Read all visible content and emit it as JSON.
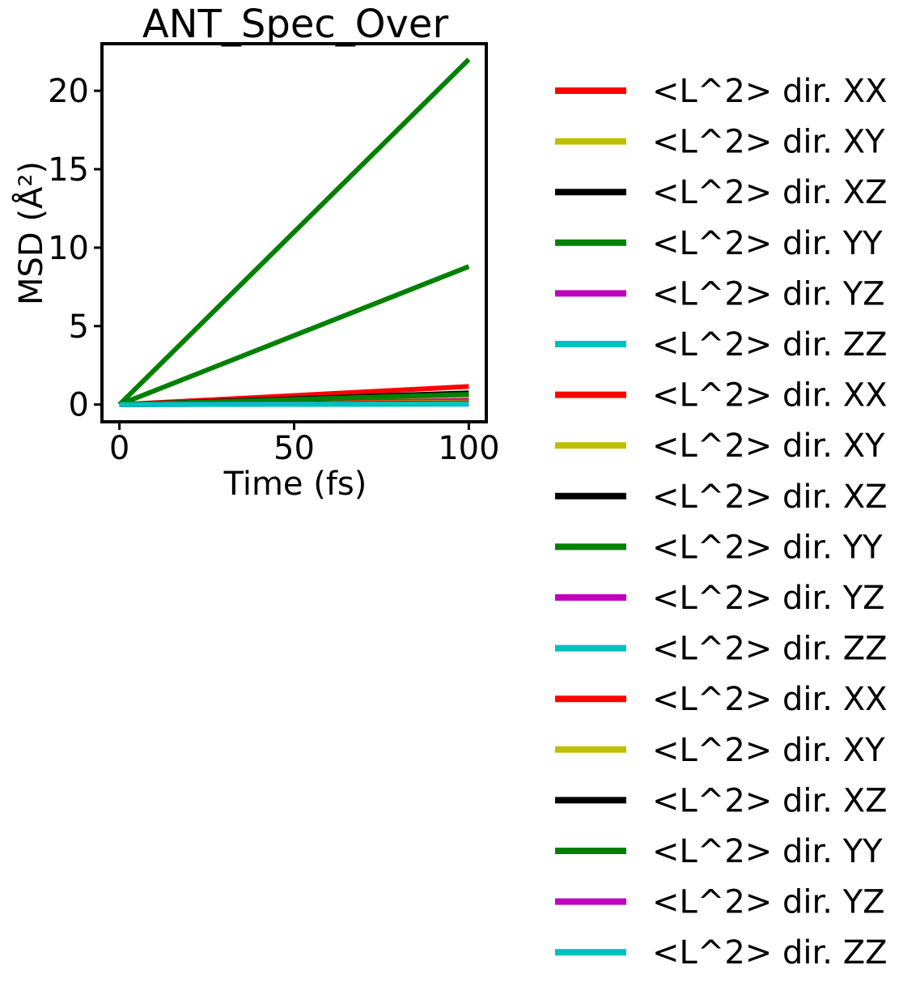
{
  "chart_data": {
    "type": "line",
    "title": "ANT_Spec_Over",
    "xlabel": "Time (fs)",
    "ylabel": "MSD (Å²)",
    "xlim": [
      -5,
      105
    ],
    "ylim": [
      -1.1,
      23
    ],
    "x_ticks": [
      0,
      50,
      100
    ],
    "y_ticks": [
      0,
      5,
      10,
      15,
      20
    ],
    "x_tick_labels": [
      "0",
      "50",
      "100"
    ],
    "y_tick_labels": [
      "0",
      "5",
      "10",
      "15",
      "20"
    ],
    "grid": false,
    "legend_position": "outside-right",
    "series": [
      {
        "name": "<L^2> dir. XX",
        "color": "#ff0000",
        "x": [
          0,
          100
        ],
        "y": [
          0,
          1.15
        ]
      },
      {
        "name": "<L^2> dir. XY",
        "color": "#bfbf00",
        "x": [
          0,
          100
        ],
        "y": [
          0,
          0.6
        ]
      },
      {
        "name": "<L^2> dir. XZ",
        "color": "#000000",
        "x": [
          0,
          100
        ],
        "y": [
          0,
          0.5
        ]
      },
      {
        "name": "<L^2> dir. YY",
        "color": "#008000",
        "x": [
          0,
          100
        ],
        "y": [
          0,
          22
        ]
      },
      {
        "name": "<L^2> dir. YZ",
        "color": "#bf00bf",
        "x": [
          0,
          100
        ],
        "y": [
          0,
          0.05
        ]
      },
      {
        "name": "<L^2> dir. ZZ",
        "color": "#00bfbf",
        "x": [
          0,
          100
        ],
        "y": [
          0,
          0.02
        ]
      },
      {
        "name": "<L^2> dir. XX",
        "color": "#ff0000",
        "x": [
          0,
          100
        ],
        "y": [
          0,
          0.45
        ]
      },
      {
        "name": "<L^2> dir. XY",
        "color": "#bfbf00",
        "x": [
          0,
          100
        ],
        "y": [
          0,
          0.35
        ]
      },
      {
        "name": "<L^2> dir. XZ",
        "color": "#000000",
        "x": [
          0,
          100
        ],
        "y": [
          0,
          0.75
        ]
      },
      {
        "name": "<L^2> dir. YY",
        "color": "#008000",
        "x": [
          0,
          100
        ],
        "y": [
          0,
          8.8
        ]
      },
      {
        "name": "<L^2> dir. YZ",
        "color": "#bf00bf",
        "x": [
          0,
          100
        ],
        "y": [
          0,
          0.25
        ]
      },
      {
        "name": "<L^2> dir. ZZ",
        "color": "#00bfbf",
        "x": [
          0,
          100
        ],
        "y": [
          0,
          0.03
        ]
      },
      {
        "name": "<L^2> dir. XX",
        "color": "#ff0000",
        "x": [
          0,
          100
        ],
        "y": [
          0,
          0.2
        ]
      },
      {
        "name": "<L^2> dir. XY",
        "color": "#bfbf00",
        "x": [
          0,
          100
        ],
        "y": [
          0,
          0.15
        ]
      },
      {
        "name": "<L^2> dir. XZ",
        "color": "#000000",
        "x": [
          0,
          100
        ],
        "y": [
          0,
          0.1
        ]
      },
      {
        "name": "<L^2> dir. YY",
        "color": "#008000",
        "x": [
          0,
          100
        ],
        "y": [
          0,
          0.65
        ]
      },
      {
        "name": "<L^2> dir. YZ",
        "color": "#bf00bf",
        "x": [
          0,
          100
        ],
        "y": [
          0,
          0.08
        ]
      },
      {
        "name": "<L^2> dir. ZZ",
        "color": "#00bfbf",
        "x": [
          0,
          100
        ],
        "y": [
          0,
          0.04
        ]
      }
    ]
  }
}
